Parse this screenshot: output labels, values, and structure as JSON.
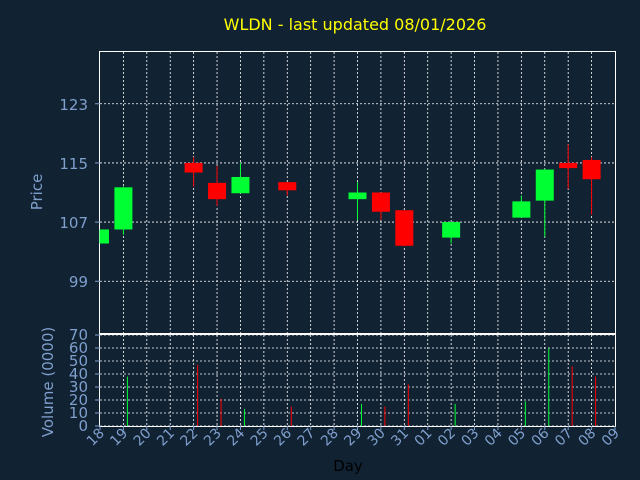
{
  "chart_data": [
    {
      "type": "candlestick",
      "title": "WLDN - last updated 08/01/2026",
      "ylabel": "Price",
      "ylim": [
        92,
        130
      ],
      "yticks": [
        "99",
        "107",
        "115",
        "123"
      ],
      "grid": true,
      "colors": {
        "up": "#00ff33",
        "down": "#ff0000",
        "grid": "#ffffff",
        "axis": "#7f9fcc",
        "title": "#ffff00"
      },
      "candles": [
        {
          "day": "18",
          "open": 104.1,
          "high": 106.0,
          "low": 104.1,
          "close": 106.0
        },
        {
          "day": "19",
          "open": 106.0,
          "high": 111.8,
          "low": 105.3,
          "close": 111.7
        },
        {
          "day": "22",
          "open": 115.0,
          "high": 115.8,
          "low": 111.8,
          "close": 113.7
        },
        {
          "day": "23",
          "open": 112.3,
          "high": 114.6,
          "low": 109.2,
          "close": 110.1
        },
        {
          "day": "24",
          "open": 110.9,
          "high": 115.0,
          "low": 110.9,
          "close": 113.1
        },
        {
          "day": "26",
          "open": 112.4,
          "high": 112.4,
          "low": 110.6,
          "close": 111.3
        },
        {
          "day": "29",
          "open": 110.1,
          "high": 112.4,
          "low": 107.3,
          "close": 111.0
        },
        {
          "day": "30",
          "open": 111.0,
          "high": 111.0,
          "low": 107.3,
          "close": 108.4
        },
        {
          "day": "31",
          "open": 108.6,
          "high": 108.6,
          "low": 103.7,
          "close": 103.8
        },
        {
          "day": "02",
          "open": 104.9,
          "high": 107.0,
          "low": 104.1,
          "close": 107.0
        },
        {
          "day": "05",
          "open": 107.6,
          "high": 110.6,
          "low": 107.6,
          "close": 109.8
        },
        {
          "day": "06",
          "open": 109.9,
          "high": 114.2,
          "low": 105.0,
          "close": 114.1
        },
        {
          "day": "07",
          "open": 115.0,
          "high": 117.5,
          "low": 111.5,
          "close": 114.3
        },
        {
          "day": "08",
          "open": 115.4,
          "high": 115.8,
          "low": 108.0,
          "close": 112.8
        }
      ]
    },
    {
      "type": "bar",
      "ylabel": "Volume (0000)",
      "xlabel": "Day",
      "ylim": [
        0,
        70
      ],
      "yticks": [
        "0",
        "10",
        "20",
        "30",
        "40",
        "50",
        "60",
        "70"
      ],
      "grid": true,
      "categories": [
        "18",
        "19",
        "20",
        "21",
        "22",
        "23",
        "24",
        "25",
        "26",
        "27",
        "28",
        "29",
        "30",
        "31",
        "01",
        "02",
        "03",
        "04",
        "05",
        "06",
        "07",
        "08",
        "09"
      ],
      "volumes": [
        {
          "day": "18",
          "value": 0,
          "dir": "up"
        },
        {
          "day": "19",
          "value": 38,
          "dir": "up"
        },
        {
          "day": "22",
          "value": 47,
          "dir": "down"
        },
        {
          "day": "23",
          "value": 21,
          "dir": "down"
        },
        {
          "day": "24",
          "value": 13,
          "dir": "up"
        },
        {
          "day": "26",
          "value": 15,
          "dir": "down"
        },
        {
          "day": "29",
          "value": 17,
          "dir": "up"
        },
        {
          "day": "30",
          "value": 15,
          "dir": "down"
        },
        {
          "day": "31",
          "value": 32,
          "dir": "down"
        },
        {
          "day": "02",
          "value": 17,
          "dir": "up"
        },
        {
          "day": "05",
          "value": 19,
          "dir": "up"
        },
        {
          "day": "06",
          "value": 60,
          "dir": "up"
        },
        {
          "day": "07",
          "value": 46,
          "dir": "down"
        },
        {
          "day": "08",
          "value": 38,
          "dir": "down"
        }
      ]
    }
  ]
}
